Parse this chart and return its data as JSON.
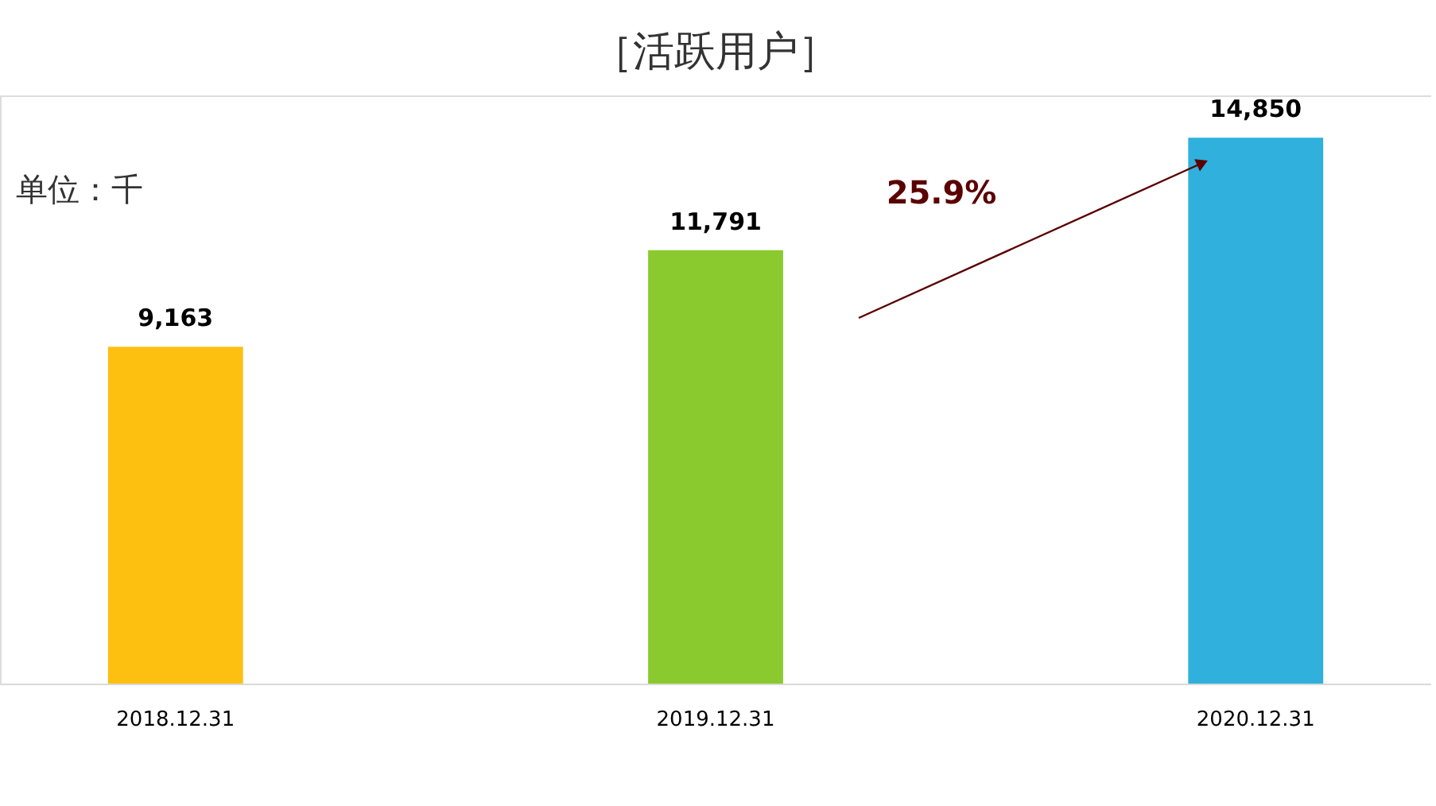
{
  "chart_data": {
    "type": "bar",
    "title": "［活跃用户］",
    "categories": [
      "2018.12.31",
      "2019.12.31",
      "2020.12.31"
    ],
    "values": [
      9163,
      11791,
      14850
    ],
    "colors": [
      "#fdc010",
      "#8aca2e",
      "#30b0dc"
    ],
    "value_labels": [
      "9,163",
      "11,791",
      "14,850"
    ],
    "grid": false,
    "annotations": [
      "单位：千",
      "25.9%"
    ]
  }
}
